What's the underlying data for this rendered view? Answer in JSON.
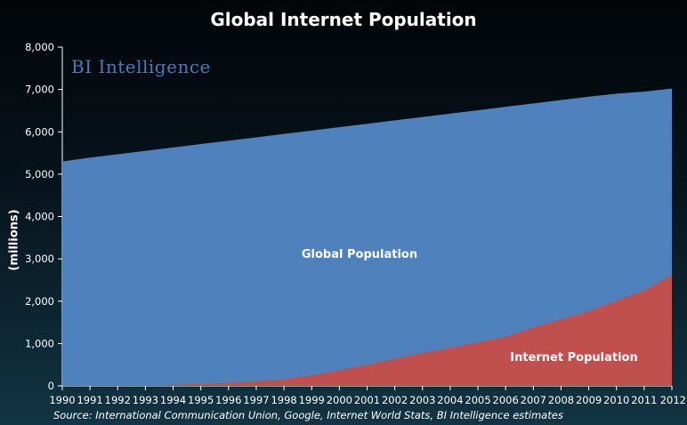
{
  "chart_data": {
    "type": "area",
    "title": "Global Internet Population",
    "ylabel": "(millions)",
    "xlabel": "",
    "x": [
      "1990",
      "1991",
      "1992",
      "1993",
      "1994",
      "1995",
      "1996",
      "1997",
      "1998",
      "1999",
      "2000",
      "2001",
      "2002",
      "2003",
      "2004",
      "2005",
      "2006",
      "2007",
      "2008",
      "2009",
      "2010",
      "2011",
      "2012"
    ],
    "ylim": [
      0,
      8000
    ],
    "yticks": [
      "0",
      "1,000",
      "2,000",
      "3,000",
      "4,000",
      "5,000",
      "6,000",
      "7,000",
      "8,000"
    ],
    "series": [
      {
        "name": "Global Population",
        "color": "#4f81bd",
        "values": [
          5300,
          5390,
          5470,
          5550,
          5630,
          5710,
          5790,
          5870,
          5950,
          6030,
          6110,
          6190,
          6270,
          6350,
          6430,
          6510,
          6590,
          6670,
          6750,
          6830,
          6900,
          6950,
          7020
        ]
      },
      {
        "name": "Internet Population",
        "color": "#c0504d",
        "values": [
          3,
          5,
          10,
          15,
          25,
          45,
          70,
          110,
          160,
          250,
          370,
          500,
          640,
          780,
          900,
          1030,
          1160,
          1380,
          1570,
          1760,
          2010,
          2250,
          2620
        ]
      }
    ],
    "legend": "none",
    "grid": false
  },
  "brand_text": "BI Intelligence",
  "source": "Source: International Communication Union, Google, Internet World Stats, BI Intelligence estimates"
}
